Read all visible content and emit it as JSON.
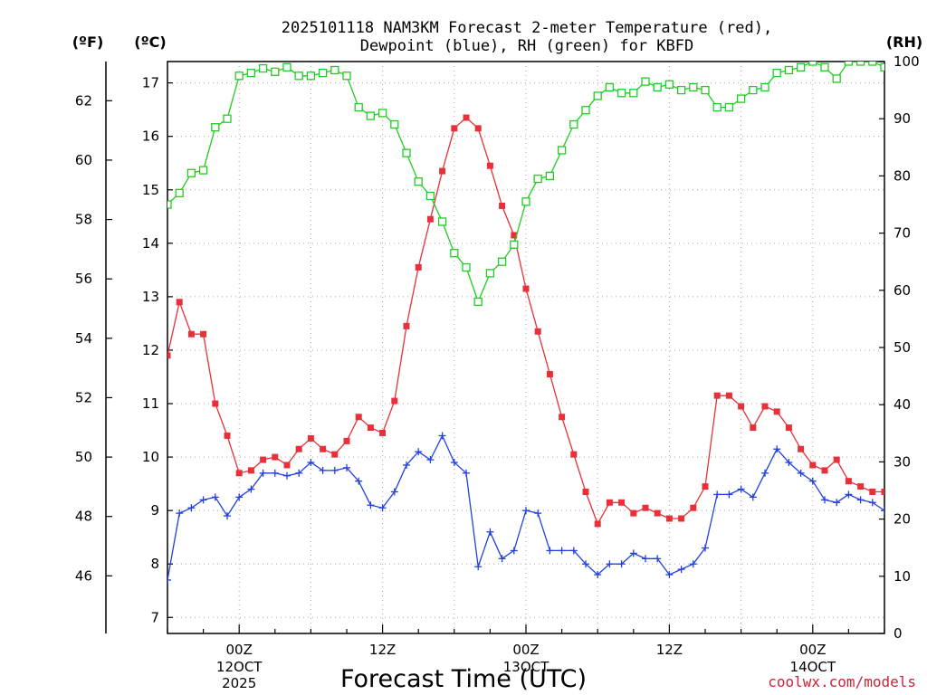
{
  "chart_data": {
    "type": "line",
    "title": "2025101118 NAM3KM Forecast 2-meter Temperature (red),",
    "subtitle": "Dewpoint (blue), RH (green) for KBFD",
    "xlabel": "Forecast Time (UTC)",
    "units": {
      "fahrenheit": "(ºF)",
      "celsius": "(ºC)",
      "rh": "(RH)"
    },
    "x_unit": "forecast hour",
    "xlim": [
      -6,
      54
    ],
    "ylim_c": [
      6.7,
      17.4
    ],
    "ylim_rh": [
      0,
      100
    ],
    "celsius_ticks": [
      7,
      8,
      9,
      10,
      11,
      12,
      13,
      14,
      15,
      16,
      17
    ],
    "fahrenheit_ticks": [
      46,
      48,
      50,
      52,
      54,
      56,
      58,
      60,
      62
    ],
    "rh_ticks": [
      0,
      10,
      20,
      30,
      40,
      50,
      60,
      70,
      80,
      90,
      100
    ],
    "x_ticks": [
      {
        "hour": 0,
        "label": "00Z",
        "date": "12OCT",
        "year": "2025"
      },
      {
        "hour": 12,
        "label": "12Z",
        "date": "",
        "year": ""
      },
      {
        "hour": 24,
        "label": "00Z",
        "date": "13OCT",
        "year": ""
      },
      {
        "hour": 36,
        "label": "12Z",
        "date": "",
        "year": ""
      },
      {
        "hour": 48,
        "label": "00Z",
        "date": "14OCT",
        "year": ""
      }
    ],
    "x": [
      -6,
      -5,
      -4,
      -3,
      -2,
      -1,
      0,
      1,
      2,
      3,
      4,
      5,
      6,
      7,
      8,
      9,
      10,
      11,
      12,
      13,
      14,
      15,
      16,
      17,
      18,
      19,
      20,
      21,
      22,
      23,
      24,
      25,
      26,
      27,
      28,
      29,
      30,
      31,
      32,
      33,
      34,
      35,
      36,
      37,
      38,
      39,
      40,
      41,
      42,
      43,
      44,
      45,
      46,
      47,
      48,
      49,
      50,
      51,
      52,
      53,
      54
    ],
    "series": [
      {
        "name": "2-meter Temperature",
        "unit": "C",
        "color": "#e8303a",
        "marker": "filled-square",
        "values": [
          11.9,
          12.9,
          12.3,
          12.3,
          11.0,
          10.4,
          9.7,
          9.75,
          9.95,
          10.0,
          9.85,
          10.15,
          10.35,
          10.15,
          10.05,
          10.3,
          10.75,
          10.55,
          10.45,
          11.05,
          12.45,
          13.55,
          14.45,
          15.35,
          16.15,
          16.35,
          16.15,
          15.45,
          14.7,
          14.15,
          13.15,
          12.35,
          11.55,
          10.75,
          10.05,
          9.35,
          8.75,
          9.15,
          9.15,
          8.95,
          9.05,
          8.95,
          8.85,
          8.85,
          9.05,
          9.45,
          11.15,
          11.15,
          10.95,
          10.55,
          10.95,
          10.85,
          10.55,
          10.15,
          9.85,
          9.75,
          9.95,
          9.55,
          9.45,
          9.35,
          9.35
        ]
      },
      {
        "name": "Dewpoint",
        "unit": "C",
        "color": "#2340e0",
        "marker": "plus",
        "values": [
          7.7,
          8.95,
          9.05,
          9.2,
          9.25,
          8.9,
          9.25,
          9.4,
          9.7,
          9.7,
          9.65,
          9.7,
          9.9,
          9.75,
          9.75,
          9.8,
          9.55,
          9.1,
          9.05,
          9.35,
          9.85,
          10.1,
          9.95,
          10.4,
          9.9,
          9.7,
          7.95,
          8.6,
          8.1,
          8.25,
          9.0,
          8.95,
          8.25,
          8.25,
          8.25,
          8.0,
          7.8,
          8.0,
          8.0,
          8.2,
          8.1,
          8.1,
          7.8,
          7.9,
          8.0,
          8.3,
          9.3,
          9.3,
          9.4,
          9.25,
          9.7,
          10.15,
          9.9,
          9.7,
          9.55,
          9.2,
          9.15,
          9.3,
          9.2,
          9.15,
          9.0
        ]
      },
      {
        "name": "RH",
        "unit": "%",
        "color": "#22cc22",
        "marker": "open-square",
        "values": [
          75,
          77,
          80.5,
          81,
          88.5,
          90,
          97.5,
          98,
          98.8,
          98.2,
          99,
          97.5,
          97.5,
          98,
          98.5,
          97.5,
          92,
          90.5,
          91,
          89,
          84,
          79,
          76.5,
          72,
          66.5,
          64,
          58,
          63,
          65,
          68,
          75.5,
          79.5,
          80,
          84.5,
          89,
          91.5,
          94,
          95.5,
          94.5,
          94.5,
          96.5,
          95.5,
          96,
          95,
          95.5,
          95,
          92,
          92,
          93.5,
          95,
          95.5,
          98,
          98.5,
          99,
          100,
          99,
          97,
          100,
          100,
          100,
          99
        ]
      }
    ]
  },
  "credit": "coolwx.com/models"
}
